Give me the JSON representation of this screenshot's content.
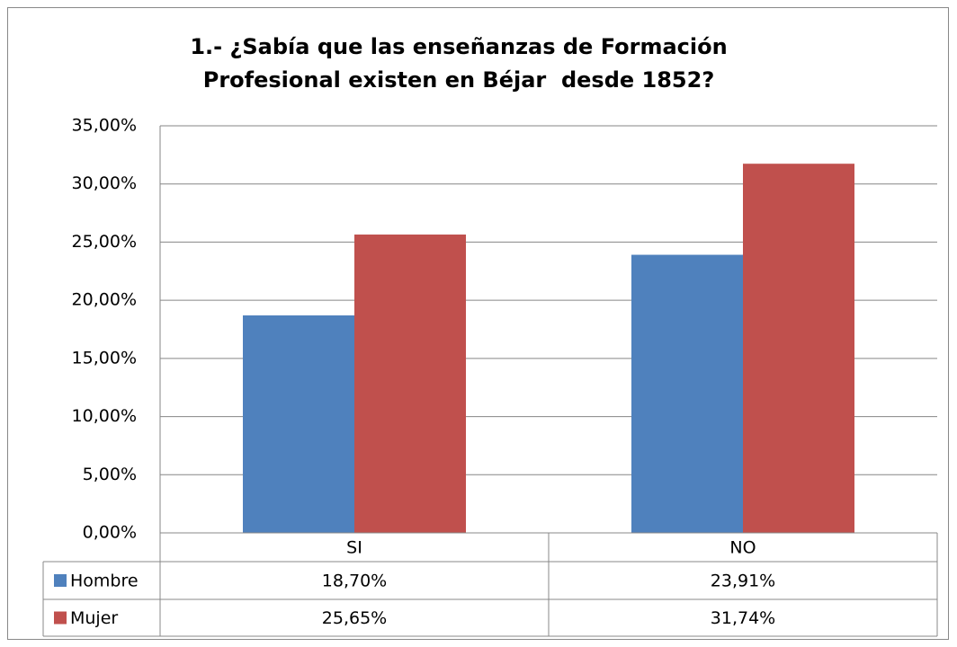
{
  "chart_data": {
    "type": "bar",
    "title": "1.- ¿Sabía que las enseñanzas de Formación Profesional existen en Béjar  desde 1852?",
    "categories": [
      "SI",
      "NO"
    ],
    "series": [
      {
        "name": "Hombre",
        "color": "#4f81bd",
        "values": [
          18.7,
          23.91
        ],
        "value_labels": [
          "18,70%",
          "23,91%"
        ]
      },
      {
        "name": "Mujer",
        "color": "#c0504d",
        "values": [
          25.65,
          31.74
        ],
        "value_labels": [
          "25,65%",
          "31,74%"
        ]
      }
    ],
    "ylim": [
      0,
      35
    ],
    "yticks": [
      {
        "value": 0,
        "label": "0,00%"
      },
      {
        "value": 5,
        "label": "5,00%"
      },
      {
        "value": 10,
        "label": "10,00%"
      },
      {
        "value": 15,
        "label": "15,00%"
      },
      {
        "value": 20,
        "label": "20,00%"
      },
      {
        "value": 25,
        "label": "25,00%"
      },
      {
        "value": 30,
        "label": "30,00%"
      },
      {
        "value": 35,
        "label": "35,00%"
      }
    ],
    "grid": true
  }
}
